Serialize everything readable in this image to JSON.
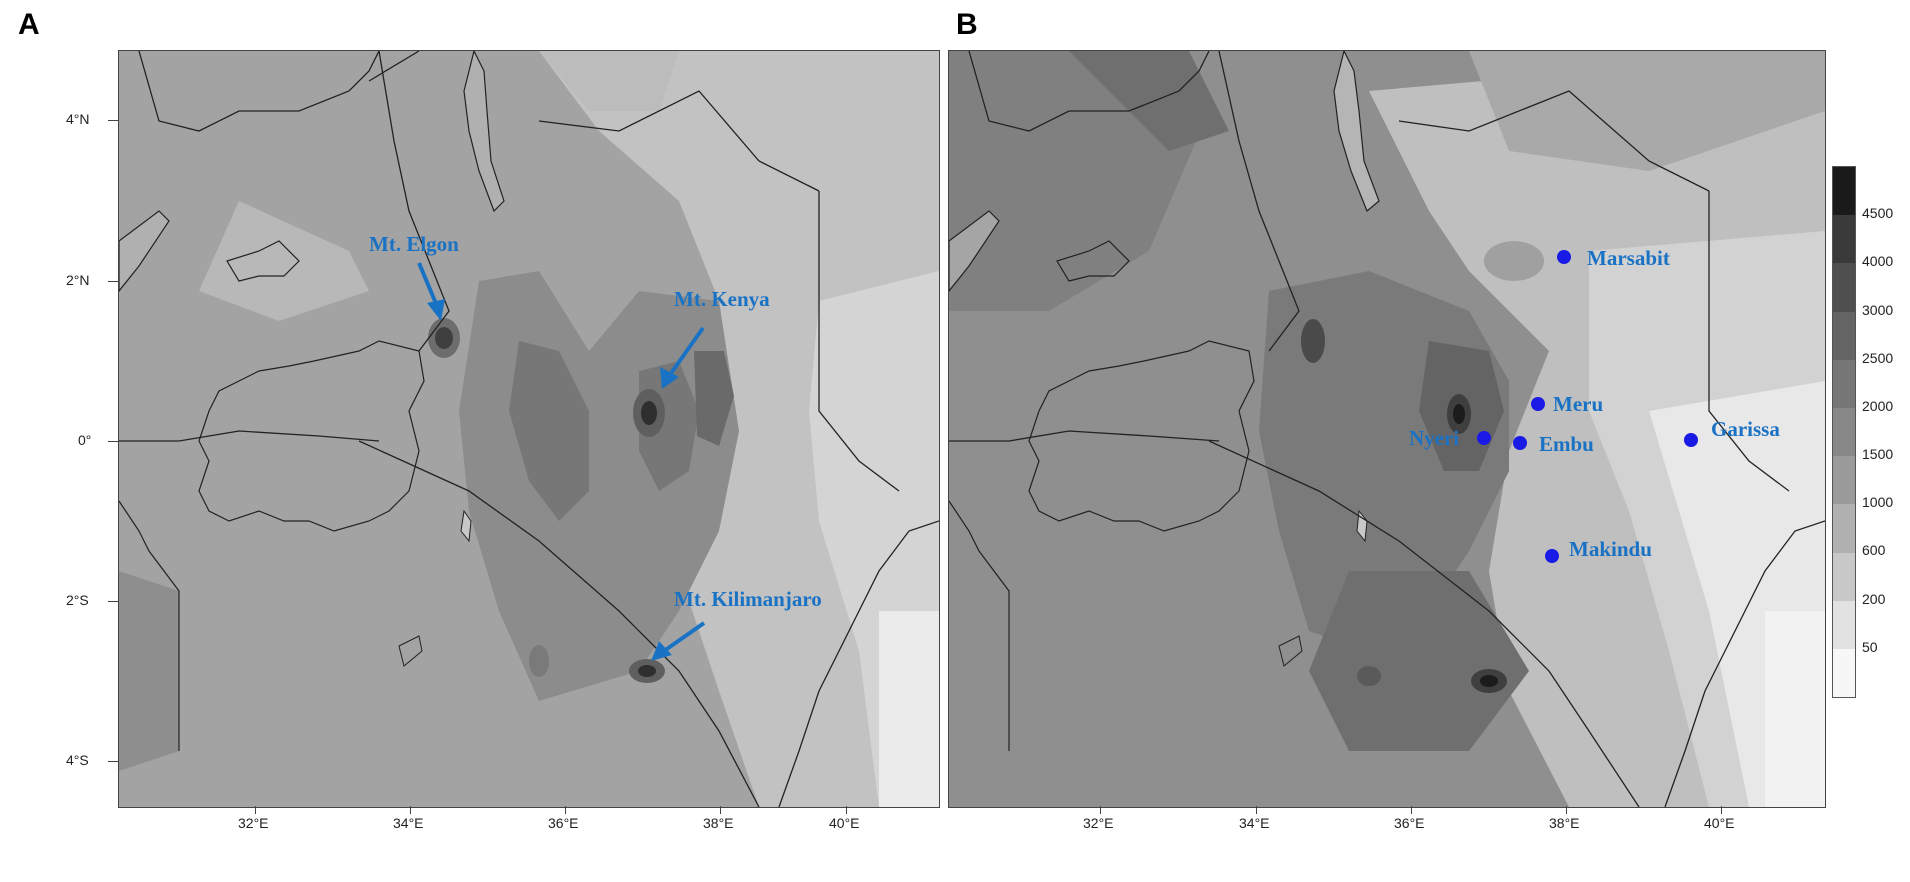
{
  "panels": [
    {
      "letter": "A",
      "features": [
        {
          "label": "Mt. Elgon"
        },
        {
          "label": "Mt. Kenya"
        },
        {
          "label": "Mt. Kilimanjaro"
        }
      ]
    },
    {
      "letter": "B",
      "towns": [
        {
          "label": "Marsabit"
        },
        {
          "label": "Meru"
        },
        {
          "label": "Nyeri"
        },
        {
          "label": "Embu"
        },
        {
          "label": "Garissa"
        },
        {
          "label": "Makindu"
        }
      ]
    }
  ],
  "axes": {
    "lon_ticks": [
      "32°E",
      "34°E",
      "36°E",
      "38°E",
      "40°E"
    ],
    "lat_ticks": [
      "4°N",
      "2°N",
      "0°",
      "2°S",
      "4°S"
    ]
  },
  "colorbar": {
    "levels": [
      "4500",
      "4000",
      "3000",
      "2500",
      "2000",
      "1500",
      "1000",
      "600",
      "200",
      "50"
    ],
    "colors": [
      "#1a1a1a",
      "#3a3a3a",
      "#4f4f4f",
      "#646464",
      "#767676",
      "#888888",
      "#9a9a9a",
      "#b0b0b0",
      "#c8c8c8",
      "#e2e2e2",
      "#f7f7f7"
    ]
  },
  "colors": {
    "annotation": "#1a72c4",
    "town_marker": "#1a1ae6"
  }
}
